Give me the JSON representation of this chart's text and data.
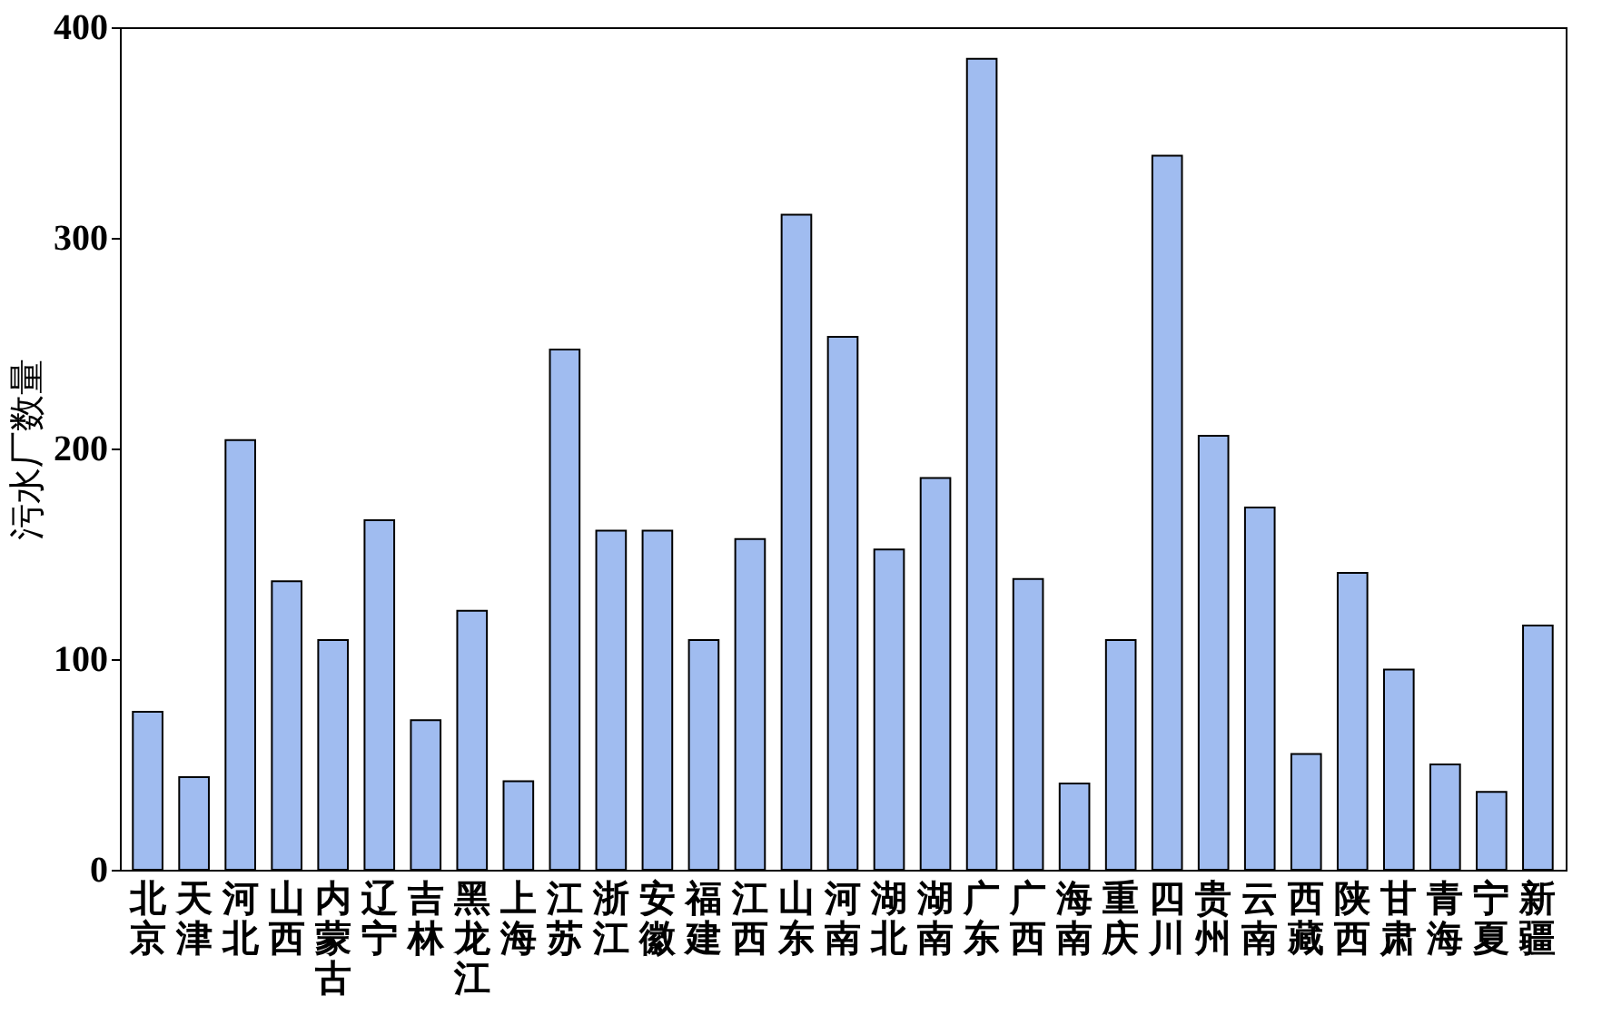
{
  "chart_data": {
    "type": "bar",
    "ylabel": "污水厂数量",
    "categories": [
      "北京",
      "天津",
      "河北",
      "山西",
      "内蒙古",
      "辽宁",
      "吉林",
      "黑龙江",
      "上海",
      "江苏",
      "浙江",
      "安徽",
      "福建",
      "江西",
      "山东",
      "河南",
      "湖北",
      "湖南",
      "广东",
      "广西",
      "海南",
      "重庆",
      "四川",
      "贵州",
      "云南",
      "西藏",
      "陕西",
      "甘肃",
      "青海",
      "宁夏",
      "新疆"
    ],
    "values": [
      75,
      44,
      204,
      137,
      109,
      166,
      71,
      123,
      42,
      247,
      161,
      161,
      109,
      157,
      311,
      253,
      152,
      186,
      385,
      138,
      41,
      109,
      339,
      206,
      172,
      55,
      141,
      95,
      50,
      37,
      116
    ],
    "color": "#a0bcf0",
    "ylim": [
      0,
      400
    ],
    "yticks": [
      0,
      100,
      200,
      300,
      400
    ],
    "grid": false
  }
}
